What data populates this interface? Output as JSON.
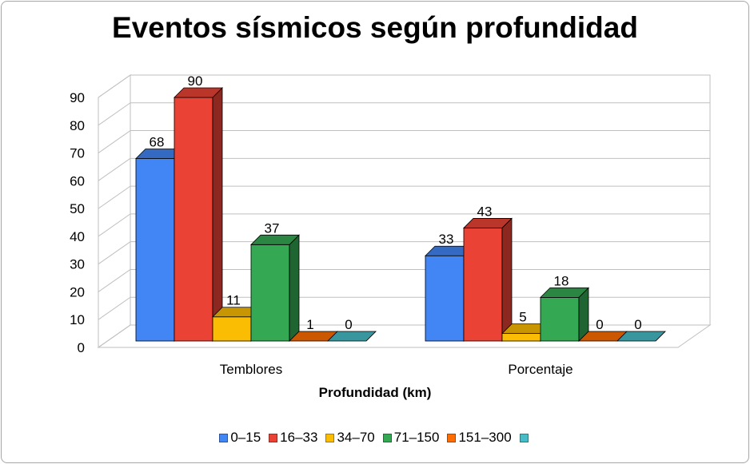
{
  "chart_data": {
    "type": "bar",
    "title": "Eventos sísmicos según profundidad",
    "xlabel": "Profundidad (km)",
    "ylabel": "",
    "categories": [
      "Temblores",
      "Porcentaje"
    ],
    "ylim": [
      0,
      90
    ],
    "yticks": [
      0,
      10,
      20,
      30,
      40,
      50,
      60,
      70,
      80,
      90
    ],
    "grid": true,
    "legend_position": "bottom",
    "three_d": true,
    "series": [
      {
        "name": "0–15",
        "values": [
          68,
          33
        ],
        "color": "#4285f4"
      },
      {
        "name": "16–33",
        "values": [
          90,
          43
        ],
        "color": "#ea4335"
      },
      {
        "name": "34–70",
        "values": [
          11,
          5
        ],
        "color": "#fbbc04"
      },
      {
        "name": "71–150",
        "values": [
          37,
          18
        ],
        "color": "#34a853"
      },
      {
        "name": "151–300",
        "values": [
          1,
          0
        ],
        "color": "#ff6d01"
      },
      {
        "name": "",
        "values": [
          0,
          0
        ],
        "color": "#46bdc6"
      }
    ]
  }
}
